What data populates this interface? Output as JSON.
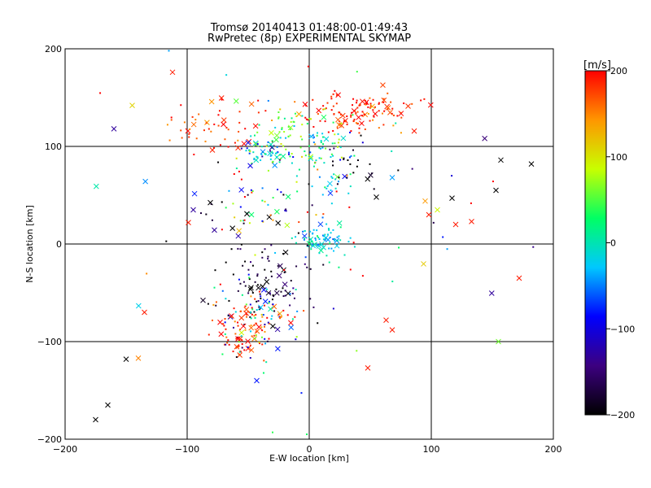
{
  "chart_data": {
    "type": "scatter",
    "title": "Tromsø 20140413 01:48:00-01:49:43",
    "subtitle": "RwPretec (8p) EXPERIMENTAL SKYMAP",
    "xlabel": "E-W location [km]",
    "ylabel": "N-S location [km]",
    "xlim": [
      -200,
      200
    ],
    "ylim": [
      -200,
      200
    ],
    "xticks": [
      -200,
      -100,
      0,
      100,
      200
    ],
    "yticks": [
      -200,
      -100,
      0,
      100,
      200
    ],
    "grid": true,
    "markers": [
      "dot",
      "x"
    ],
    "colorbar": {
      "label": "[m/s]",
      "min": -200,
      "max": 200,
      "ticks": [
        -200,
        -100,
        0,
        100,
        200
      ],
      "colormap": [
        "#000000",
        "#3c0080",
        "#0000ff",
        "#00c8ff",
        "#00ff64",
        "#c8ff00",
        "#ff9600",
        "#ff0000"
      ]
    },
    "clusters": [
      {
        "x": 40,
        "y": 135,
        "sx": 22,
        "sy": 10,
        "n": 130,
        "v": 190,
        "dv": 25
      },
      {
        "x": -70,
        "y": 120,
        "sx": 25,
        "sy": 15,
        "n": 55,
        "v": 180,
        "dv": 30
      },
      {
        "x": -20,
        "y": 125,
        "sx": 10,
        "sy": 8,
        "n": 25,
        "v": 50,
        "dv": 30
      },
      {
        "x": 10,
        "y": 100,
        "sx": 20,
        "sy": 15,
        "n": 70,
        "v": 20,
        "dv": 60
      },
      {
        "x": -35,
        "y": 95,
        "sx": 15,
        "sy": 8,
        "n": 70,
        "v": -20,
        "dv": 60
      },
      {
        "x": 35,
        "y": 80,
        "sx": 12,
        "sy": 10,
        "n": 20,
        "v": -190,
        "dv": 20
      },
      {
        "x": 15,
        "y": 60,
        "sx": 10,
        "sy": 10,
        "n": 20,
        "v": -20,
        "dv": 30
      },
      {
        "x": -40,
        "y": 40,
        "sx": 25,
        "sy": 20,
        "n": 55,
        "v": 0,
        "dv": 150
      },
      {
        "x": 10,
        "y": 5,
        "sx": 10,
        "sy": 8,
        "n": 70,
        "v": -20,
        "dv": 25
      },
      {
        "x": -40,
        "y": -40,
        "sx": 18,
        "sy": 22,
        "n": 90,
        "v": -180,
        "dv": 30
      },
      {
        "x": -45,
        "y": -80,
        "sx": 15,
        "sy": 12,
        "n": 80,
        "v": 180,
        "dv": 30
      },
      {
        "x": -60,
        "y": -105,
        "sx": 6,
        "sy": 5,
        "n": 20,
        "v": 180,
        "dv": 20
      },
      {
        "x": -40,
        "y": -75,
        "sx": 20,
        "sy": 25,
        "n": 60,
        "v": -60,
        "dv": 80
      },
      {
        "x": 30,
        "y": 0,
        "sx": 80,
        "sy": 80,
        "n": 70,
        "v": 0,
        "dv": 200
      }
    ],
    "extra_points": [
      {
        "x": -175,
        "y": -180,
        "v": -200,
        "m": "x"
      },
      {
        "x": -165,
        "y": -165,
        "v": -200,
        "m": "x"
      },
      {
        "x": -150,
        "y": -118,
        "v": -200,
        "m": "x"
      },
      {
        "x": -140,
        "y": -117,
        "v": 150,
        "m": "x"
      },
      {
        "x": -135,
        "y": -70,
        "v": 190,
        "m": "x"
      },
      {
        "x": -160,
        "y": 118,
        "v": -130,
        "m": "x"
      },
      {
        "x": -145,
        "y": 142,
        "v": 110,
        "m": "x"
      },
      {
        "x": -112,
        "y": 176,
        "v": 190,
        "m": "x"
      },
      {
        "x": -95,
        "y": 35,
        "v": -130,
        "m": "x"
      },
      {
        "x": -99,
        "y": 22,
        "v": 190,
        "m": "x"
      },
      {
        "x": 157,
        "y": 86,
        "v": -200,
        "m": "x"
      },
      {
        "x": 182,
        "y": 82,
        "v": -200,
        "m": "x"
      },
      {
        "x": 153,
        "y": 55,
        "v": -200,
        "m": "x"
      },
      {
        "x": 117,
        "y": 47,
        "v": -200,
        "m": "x"
      },
      {
        "x": 95,
        "y": 44,
        "v": 140,
        "m": "x"
      },
      {
        "x": 120,
        "y": 20,
        "v": 190,
        "m": "x"
      },
      {
        "x": 133,
        "y": 23,
        "v": 190,
        "m": "x"
      },
      {
        "x": 172,
        "y": -35,
        "v": 190,
        "m": "x"
      },
      {
        "x": 155,
        "y": -100,
        "v": 60,
        "m": "x"
      },
      {
        "x": 48,
        "y": -127,
        "v": 190,
        "m": "x"
      },
      {
        "x": 68,
        "y": -88,
        "v": 190,
        "m": "x"
      },
      {
        "x": 63,
        "y": -78,
        "v": 190,
        "m": "x"
      },
      {
        "x": -43,
        "y": -140,
        "v": -80,
        "m": "x"
      },
      {
        "x": 98,
        "y": 30,
        "v": 190,
        "m": "x"
      },
      {
        "x": 105,
        "y": 35,
        "v": 90,
        "m": "x"
      },
      {
        "x": 68,
        "y": 68,
        "v": -40,
        "m": "x"
      },
      {
        "x": 55,
        "y": 48,
        "v": -200,
        "m": "x"
      },
      {
        "x": -2,
        "y": -195,
        "v": 30,
        "m": "dot"
      },
      {
        "x": -30,
        "y": -193,
        "v": 40,
        "m": "dot"
      },
      {
        "x": -115,
        "y": 198,
        "v": -40,
        "m": "dot"
      }
    ]
  }
}
